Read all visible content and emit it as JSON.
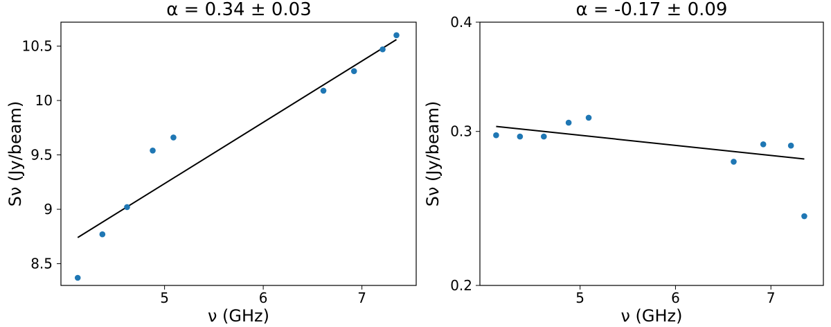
{
  "chart_data": [
    {
      "type": "scatter",
      "title": "α = 0.34 ± 0.03",
      "xlabel": "ν (GHz)",
      "ylabel": "Sν (Jy/beam)",
      "xlim": [
        3.95,
        7.55
      ],
      "ylim": [
        8.3,
        10.72
      ],
      "yscale": "linear",
      "x_ticks": [
        5,
        6,
        7
      ],
      "x_tick_labels": [
        "5",
        "6",
        "7"
      ],
      "y_ticks": [
        8.5,
        9,
        9.5,
        10,
        10.5
      ],
      "y_tick_labels": [
        "8.5",
        "9",
        "9.5",
        "10",
        "10.5"
      ],
      "grid": false,
      "point_color": "#1f77b4",
      "line_color": "#000000",
      "series": [
        {
          "kind": "points",
          "x": [
            4.12,
            4.37,
            4.62,
            4.88,
            5.09,
            6.61,
            6.92,
            7.21,
            7.35
          ],
          "y": [
            8.37,
            8.77,
            9.02,
            9.54,
            9.66,
            10.09,
            10.27,
            10.47,
            10.6
          ]
        },
        {
          "kind": "fit-line",
          "x": [
            4.12,
            7.35
          ],
          "y": [
            8.74,
            10.56
          ]
        }
      ]
    },
    {
      "type": "scatter",
      "title": "α = -0.17 ± 0.09",
      "xlabel": "ν (GHz)",
      "ylabel": "Sν (Jy/beam)",
      "xlim": [
        3.95,
        7.55
      ],
      "ylim": [
        0.2,
        0.4
      ],
      "yscale": "log",
      "x_ticks": [
        5,
        6,
        7
      ],
      "x_tick_labels": [
        "5",
        "6",
        "7"
      ],
      "y_ticks": [
        0.2,
        0.3,
        0.4
      ],
      "y_tick_labels": [
        "0.2",
        "0.3",
        "0.4"
      ],
      "grid": false,
      "point_color": "#1f77b4",
      "line_color": "#000000",
      "series": [
        {
          "kind": "points",
          "x": [
            4.12,
            4.37,
            4.62,
            4.88,
            5.09,
            6.61,
            6.92,
            7.21,
            7.35
          ],
          "y": [
            0.297,
            0.296,
            0.296,
            0.307,
            0.311,
            0.277,
            0.29,
            0.289,
            0.24
          ]
        },
        {
          "kind": "fit-line",
          "x": [
            4.12,
            7.35
          ],
          "y": [
            0.304,
            0.279
          ]
        }
      ]
    }
  ]
}
